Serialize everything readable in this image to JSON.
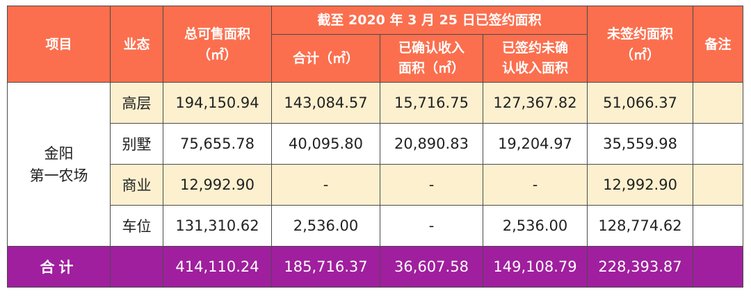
{
  "header": {
    "project": "项目",
    "type": "业态",
    "total_area": [
      "总可售面积",
      "（㎡）"
    ],
    "signed_group": "截至 2020 年 3 月 25 日已签约面积",
    "signed_total": "合计（㎡）",
    "signed_confirmed": [
      "已确认收入",
      "面积（㎡）"
    ],
    "signed_unconfirmed": [
      "已签约未确",
      "认收入面积"
    ],
    "unsigned_area": [
      "未签约面积",
      "（㎡）"
    ],
    "remarks": "备注"
  },
  "project_name": [
    "金阳",
    "第一农场"
  ],
  "rows": [
    {
      "type": "高层",
      "total": "194,150.94",
      "signed_total": "143,084.57",
      "confirmed": "15,716.75",
      "unconfirmed": "127,367.82",
      "unsigned": "51,066.37",
      "remark": ""
    },
    {
      "type": "别墅",
      "total": "75,655.78",
      "signed_total": "40,095.80",
      "confirmed": "20,890.83",
      "unconfirmed": "19,204.97",
      "unsigned": "35,559.98",
      "remark": ""
    },
    {
      "type": "商业",
      "total": "12,992.90",
      "signed_total": "-",
      "confirmed": "-",
      "unconfirmed": "-",
      "unsigned": "12,992.90",
      "remark": ""
    },
    {
      "type": "车位",
      "total": "131,310.62",
      "signed_total": "2,536.00",
      "confirmed": "-",
      "unconfirmed": "2,536.00",
      "unsigned": "128,774.62",
      "remark": ""
    }
  ],
  "total_row": {
    "label": "合计",
    "type": "",
    "total": "414,110.24",
    "signed_total": "185,716.37",
    "confirmed": "36,607.58",
    "unconfirmed": "149,108.79",
    "unsigned": "228,393.87",
    "remark": ""
  },
  "colors": {
    "header": "#fb6f4e",
    "cream": "#fdf0cf",
    "total": "#a01f9e"
  }
}
